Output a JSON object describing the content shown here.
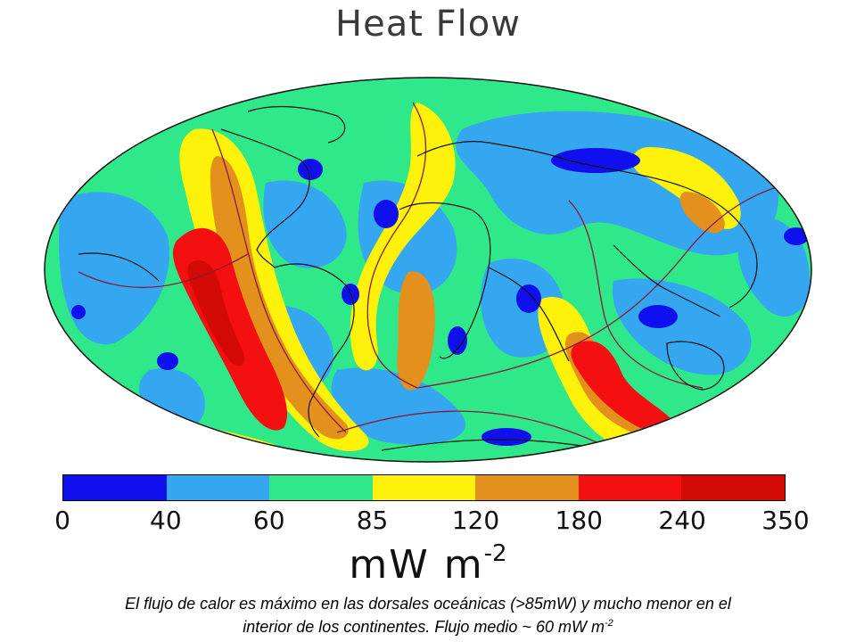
{
  "title": "Heat Flow",
  "colorbar": {
    "colors": [
      "#1010ee",
      "#35a6f0",
      "#2ee88a",
      "#fff20a",
      "#e4901c",
      "#f41010",
      "#d40a06"
    ],
    "ticks": [
      "0",
      "40",
      "60",
      "85",
      "120",
      "180",
      "240",
      "350"
    ]
  },
  "units": {
    "base": "mW  m",
    "exponent": "-2"
  },
  "caption": {
    "line1": "El flujo de calor es máximo en las dorsales oceánicas (>85mW) y mucho menor en el",
    "line2_text": "interior de los continentes. Flujo medio ~ 60 mW m",
    "line2_exponent": "-2"
  }
}
